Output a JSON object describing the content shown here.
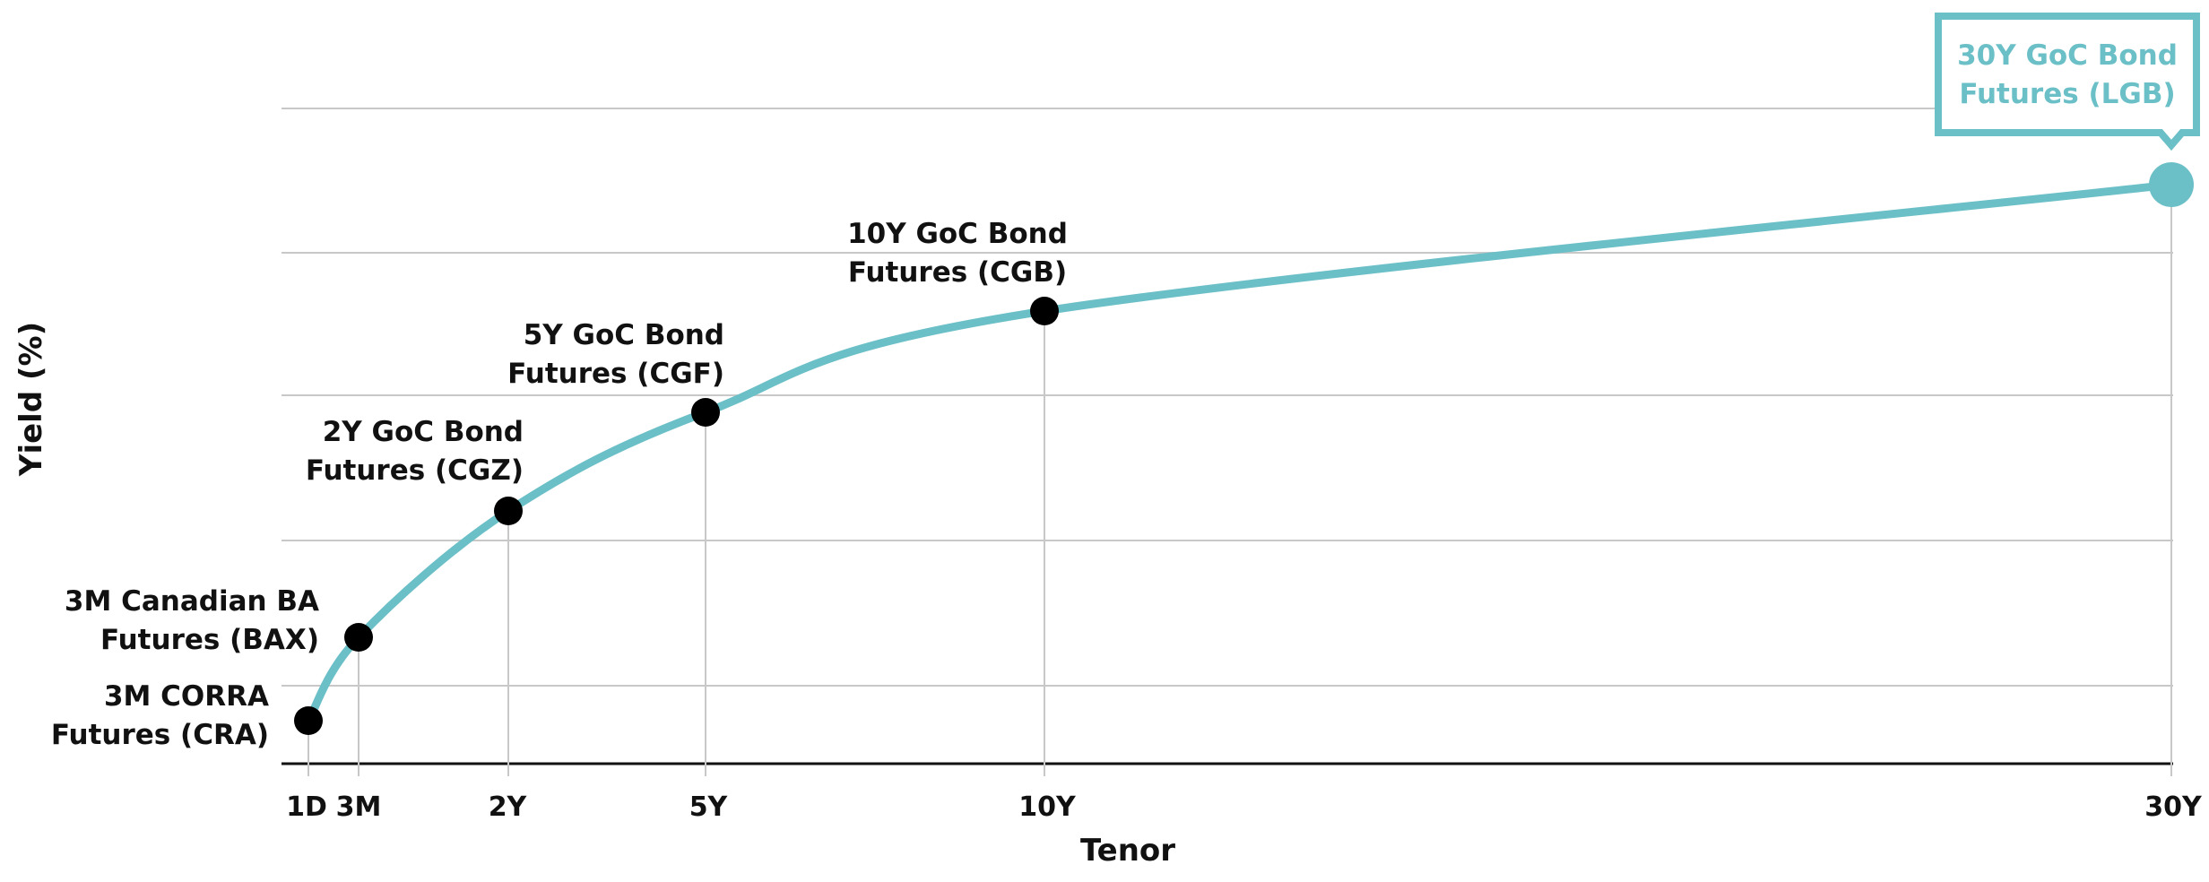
{
  "chart_data": {
    "type": "line",
    "title": "",
    "xlabel": "Tenor",
    "ylabel": "Yield (%)",
    "grid": true,
    "curve_color": "#6bbfc7",
    "point_color": "#000000",
    "highlight_color": "#6bbfc7",
    "gridline_color": "#c8c8c8",
    "axis_color": "#111111",
    "x_ticks": [
      {
        "label": "1D",
        "years": 0.0027
      },
      {
        "label": "3M",
        "years": 0.25
      },
      {
        "label": "2Y",
        "years": 2
      },
      {
        "label": "5Y",
        "years": 5
      },
      {
        "label": "10Y",
        "years": 10
      },
      {
        "label": "30Y",
        "years": 30
      }
    ],
    "points": [
      {
        "tenor": "1D",
        "years": 0.0027,
        "label": [
          "3M CORRA",
          "Futures (CRA)"
        ],
        "highlight": false
      },
      {
        "tenor": "3M",
        "years": 0.25,
        "label": [
          "3M Canadian BA",
          "Futures (BAX)"
        ],
        "highlight": false
      },
      {
        "tenor": "2Y",
        "years": 2,
        "label": [
          "2Y GoC Bond",
          "Futures (CGZ)"
        ],
        "highlight": false
      },
      {
        "tenor": "5Y",
        "years": 5,
        "label": [
          "5Y GoC Bond",
          "Futures (CGF)"
        ],
        "highlight": false
      },
      {
        "tenor": "10Y",
        "years": 10,
        "label": [
          "10Y GoC Bond",
          "Futures (CGB)"
        ],
        "highlight": false
      },
      {
        "tenor": "30Y",
        "years": 30,
        "label": [
          "30Y GoC Bond",
          "Futures (LGB)"
        ],
        "highlight": true
      }
    ]
  }
}
